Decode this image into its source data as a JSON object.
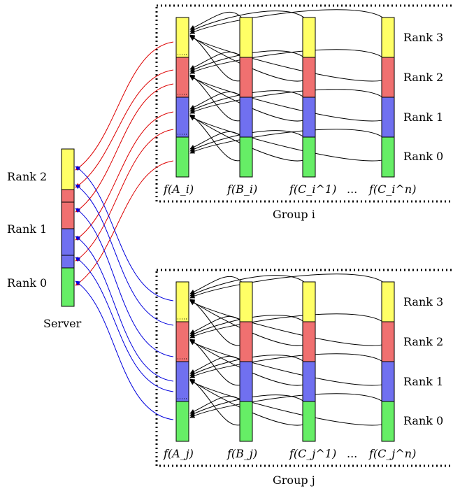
{
  "colors": {
    "yellow": "#ffff66",
    "red": "#f07070",
    "blue": "#7070f0",
    "green": "#66ee66",
    "send_arrow": "#dd0000",
    "recv_arrow": "#0000dd",
    "intra_arrow": "#000000"
  },
  "server": {
    "label": "Server",
    "rank_labels": [
      "Rank 2",
      "Rank 1",
      "Rank 0"
    ]
  },
  "group_i": {
    "title": "Group i",
    "rank_labels": [
      "Rank 3",
      "Rank 2",
      "Rank 1",
      "Rank 0"
    ],
    "column_labels": [
      "f(A_i)",
      "f(B_i)",
      "f(C_i^1)",
      "...",
      "f(C_i^n)"
    ]
  },
  "group_j": {
    "title": "Group j",
    "rank_labels": [
      "Rank 3",
      "Rank 2",
      "Rank 1",
      "Rank 0"
    ],
    "column_labels": [
      "f(A_j)",
      "f(B_j)",
      "f(C_j^1)",
      "...",
      "f(C_j^n)"
    ]
  }
}
